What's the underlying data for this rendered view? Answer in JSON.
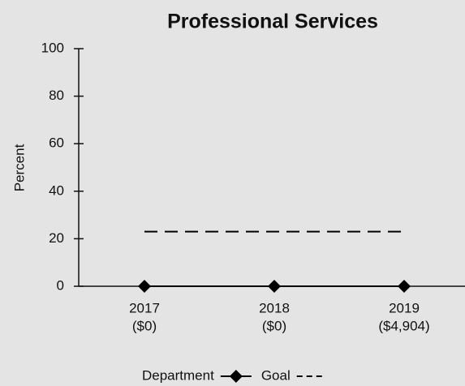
{
  "chart_data": {
    "type": "line",
    "title": "Professional Services",
    "y_label": "Percent",
    "categories": [
      [
        "2017",
        "($0)"
      ],
      [
        "2018",
        "($0)"
      ],
      [
        "2019",
        "($4,904)"
      ]
    ],
    "series": [
      {
        "name": "Department",
        "color": "#000000",
        "values": [
          0,
          0,
          0
        ],
        "marker": "diamond"
      },
      {
        "name": "Goal",
        "color": "#000000",
        "values": [
          23,
          23,
          23
        ],
        "dashed": true
      }
    ],
    "ylim": [
      0,
      100
    ],
    "yticks": [
      0,
      20,
      40,
      60,
      80,
      100
    ],
    "grid": false
  }
}
